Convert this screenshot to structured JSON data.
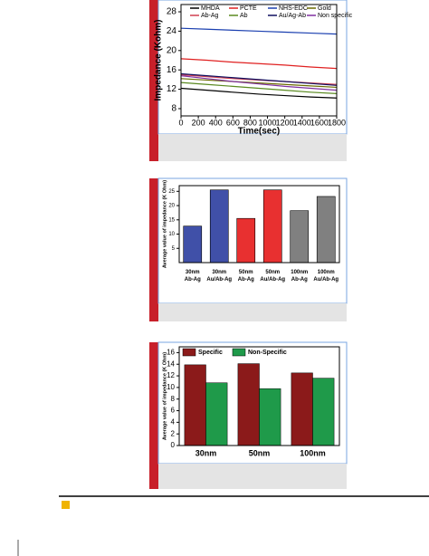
{
  "chart_data": [
    {
      "type": "line",
      "xlabel": "Time(sec)",
      "ylabel": "Impedance (Kohm)",
      "x": [
        0,
        300,
        600,
        900,
        1200,
        1500,
        1800
      ],
      "xlim": [
        0,
        1800
      ],
      "xticks": [
        0,
        200,
        400,
        600,
        800,
        1000,
        1200,
        1400,
        1600,
        1800
      ],
      "ylim": [
        6.5,
        29.5
      ],
      "yticks": [
        8,
        12,
        16,
        20,
        24,
        28
      ],
      "series": [
        {
          "name": "MHDA",
          "color": "#000000",
          "values": [
            12.2,
            11.8,
            11.4,
            11,
            10.7,
            10.4,
            10.2
          ]
        },
        {
          "name": "PCTE",
          "color": "#e02020",
          "values": [
            18.3,
            18,
            17.6,
            17.3,
            17,
            16.6,
            16.3
          ]
        },
        {
          "name": "NHS-EDC",
          "color": "#1a3fb0",
          "values": [
            24.6,
            24.4,
            24.2,
            24,
            23.8,
            23.6,
            23.4
          ]
        },
        {
          "name": "Gold",
          "color": "#6b6b00",
          "values": [
            14.2,
            13.9,
            13.6,
            13.3,
            13,
            12.7,
            12.4
          ]
        },
        {
          "name": "Ab-Ag",
          "color": "#d04050",
          "values": [
            15,
            14.6,
            14.2,
            13.9,
            13.6,
            13.3,
            13
          ]
        },
        {
          "name": "Ab",
          "color": "#5a8a20",
          "values": [
            13.4,
            13,
            12.6,
            12.2,
            11.8,
            11.4,
            11.1
          ]
        },
        {
          "name": "Au/Ag-Ab",
          "color": "#101060",
          "values": [
            15.2,
            14.8,
            14.4,
            14,
            13.6,
            13.2,
            12.8
          ]
        },
        {
          "name": "Non specific",
          "color": "#8030a0",
          "values": [
            14.8,
            14.2,
            13.6,
            13.1,
            12.6,
            12.2,
            11.8
          ]
        }
      ]
    },
    {
      "type": "bar",
      "ylabel": "Average value of impedance (K Ohm)",
      "categories": [
        "30nm Ab-Ag",
        "30nm Au/Ab-Ag",
        "50nm Ab-Ag",
        "50nm Au/Ab-Ag",
        "100nm Ab-Ag",
        "100nm Au/Ab-Ag"
      ],
      "values": [
        12.8,
        25.5,
        15.5,
        25.5,
        18.2,
        23.2
      ],
      "colors": [
        "#4050a8",
        "#4050a8",
        "#e83030",
        "#e83030",
        "#808080",
        "#808080"
      ],
      "ylim": [
        0,
        27
      ],
      "yticks": [
        5,
        10,
        15,
        20,
        25
      ]
    },
    {
      "type": "grouped-bar",
      "ylabel": "Average value of impedance (K Ohm)",
      "categories": [
        "30nm",
        "50nm",
        "100nm"
      ],
      "series": [
        {
          "name": "Specific",
          "color": "#8b1a1a",
          "values": [
            13.9,
            14.1,
            12.5
          ]
        },
        {
          "name": "Non-Specific",
          "color": "#1f9a4a",
          "values": [
            10.8,
            9.8,
            11.6
          ]
        }
      ],
      "ylim": [
        0,
        17
      ],
      "yticks": [
        0,
        2,
        4,
        6,
        8,
        10,
        12,
        14,
        16
      ]
    }
  ]
}
